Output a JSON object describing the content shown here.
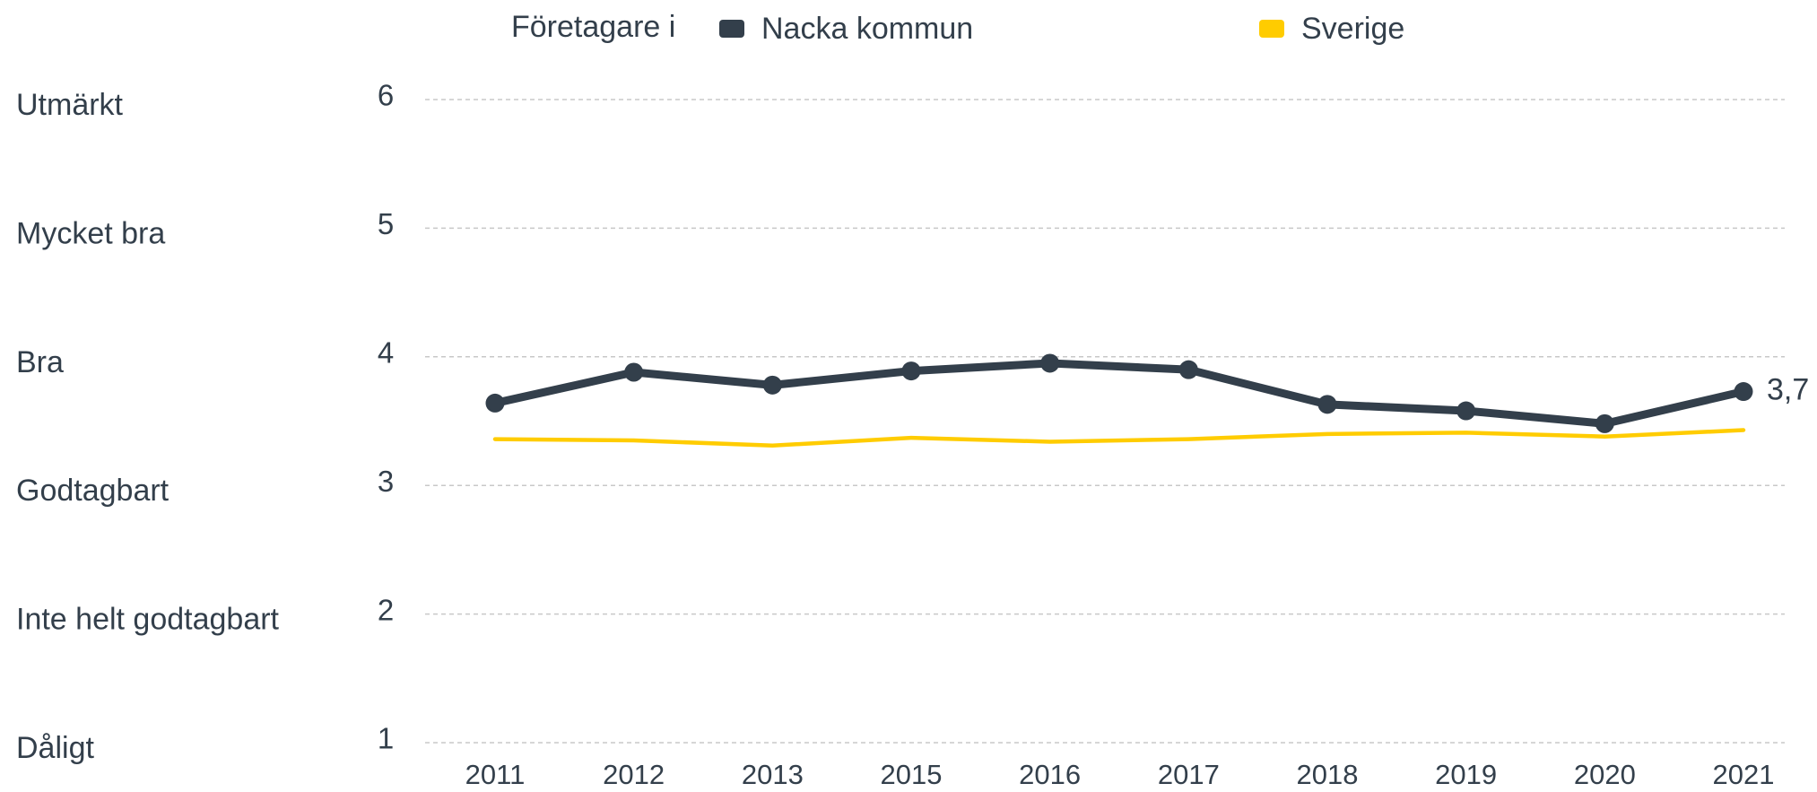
{
  "chart_data": {
    "type": "line",
    "legend_title": "Företagare i",
    "categories": [
      "2011",
      "2012",
      "2013",
      "2015",
      "2016",
      "2017",
      "2018",
      "2019",
      "2020",
      "2021"
    ],
    "series": [
      {
        "name": "Nacka kommun",
        "color": "#333f4b",
        "markers": true,
        "values": [
          3.64,
          3.88,
          3.78,
          3.89,
          3.95,
          3.9,
          3.63,
          3.58,
          3.48,
          3.73
        ],
        "value_labels": [
          null,
          null,
          null,
          null,
          null,
          null,
          null,
          null,
          null,
          "3,7"
        ]
      },
      {
        "name": "Sverige",
        "color": "#ffcc00",
        "markers": false,
        "values": [
          3.36,
          3.35,
          3.31,
          3.37,
          3.34,
          3.36,
          3.4,
          3.41,
          3.38,
          3.43
        ]
      }
    ],
    "ylim": [
      1,
      6
    ],
    "yticks": [
      1,
      2,
      3,
      4,
      5,
      6
    ],
    "rating_labels": [
      "Dåligt",
      "Inte helt godtagbart",
      "Godtagbart",
      "Bra",
      "Mycket bra",
      "Utmärkt"
    ],
    "grid": true
  }
}
